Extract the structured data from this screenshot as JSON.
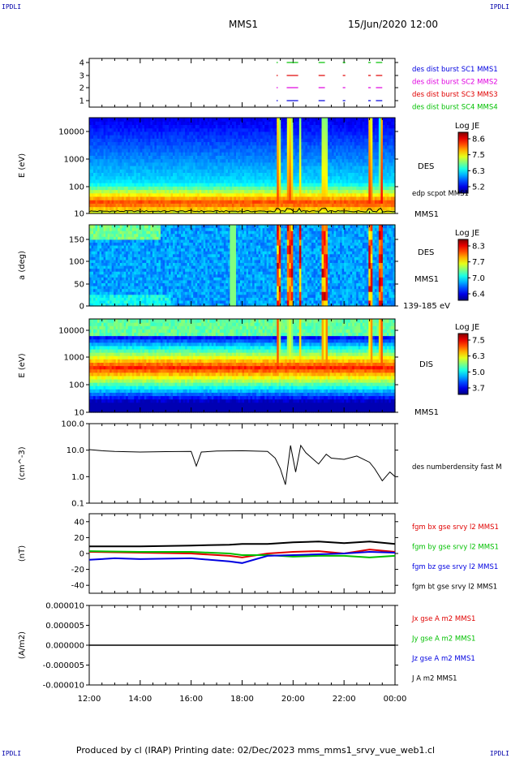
{
  "header": {
    "corner_label": "IPDLI",
    "mission": "MMS1",
    "datetime": "15/Jun/2020 12:00"
  },
  "footer": {
    "text": "Produced by cl (IRAP)   Printing date: 02/Dec/2023   mms_mms1_srvy_vue_web1.cl"
  },
  "colors": {
    "red": "#e00000",
    "green": "#00c000",
    "blue": "#0000e0",
    "magenta": "#e000e0",
    "black": "#000000"
  },
  "chart_data": {
    "type": "line",
    "x_axis": {
      "ticks": [
        "12:00",
        "14:00",
        "16:00",
        "18:00",
        "20:00",
        "22:00",
        "00:00"
      ],
      "range_hours": [
        0,
        12
      ]
    },
    "panels": [
      {
        "name": "burst-intervals",
        "type": "timeline",
        "yticks": [
          "1",
          "2",
          "3",
          "4"
        ],
        "legend": [
          {
            "label": "des dist burst SC1 MMS1",
            "color": "#0000e0"
          },
          {
            "label": "des dist burst SC2 MMS2",
            "color": "#e000e0"
          },
          {
            "label": "des dist burst SC3 MMS3",
            "color": "#e00000"
          },
          {
            "label": "des dist burst SC4 MMS4",
            "color": "#00c000"
          }
        ],
        "intervals_hours": [
          [
            7.35,
            7.4
          ],
          [
            7.75,
            8.2
          ],
          [
            9.0,
            9.25
          ],
          [
            9.95,
            10.05
          ],
          [
            10.95,
            11.05
          ],
          [
            11.25,
            11.5
          ]
        ]
      },
      {
        "name": "des-energy-spectrogram",
        "type": "heatmap",
        "ylabel": "E (eV)",
        "yticks": [
          "10",
          "100",
          "1000",
          "10000"
        ],
        "colorbar": {
          "title": "Log JE",
          "ticks": [
            "8.6",
            "7.5",
            "6.3",
            "5.2"
          ]
        },
        "labels": [
          "DES",
          "edp scpot MMS1",
          "MMS1"
        ]
      },
      {
        "name": "des-pitch-angle",
        "type": "heatmap",
        "ylabel": "a (deg)",
        "yticks": [
          "0",
          "50",
          "100",
          "150"
        ],
        "colorbar": {
          "title": "Log JE",
          "ticks": [
            "8.3",
            "7.7",
            "7.0",
            "6.4"
          ]
        },
        "labels": [
          "DES",
          "MMS1",
          "139-185 eV"
        ]
      },
      {
        "name": "dis-energy-spectrogram",
        "type": "heatmap",
        "ylabel": "E (eV)",
        "yticks": [
          "10",
          "100",
          "1000",
          "10000"
        ],
        "colorbar": {
          "title": "Log JE",
          "ticks": [
            "7.5",
            "6.3",
            "5.0",
            "3.7"
          ]
        },
        "labels": [
          "DIS",
          "MMS1"
        ]
      },
      {
        "name": "number-density",
        "type": "line",
        "ylabel": "(cm^-3)",
        "yticks": [
          "0.1",
          "1.0",
          "10.0",
          "100.0"
        ],
        "ylim": [
          0.1,
          100
        ],
        "legend": [
          {
            "label": "des numberdensity fast M",
            "color": "#000000"
          }
        ],
        "series": [
          {
            "x": [
              0,
              0.5,
              1,
              2,
              3,
              4,
              4.2,
              4.4,
              5,
              6,
              7,
              7.3,
              7.5,
              7.7,
              7.9,
              8.1,
              8.3,
              8.5,
              9,
              9.3,
              9.5,
              10,
              10.5,
              11,
              11.2,
              11.5,
              11.8,
              12
            ],
            "y": [
              10.5,
              9.5,
              9.0,
              8.5,
              8.8,
              9.0,
              2.5,
              8.5,
              9.2,
              9.5,
              9.0,
              5.0,
              2.0,
              0.5,
              15.0,
              1.5,
              15.0,
              8.0,
              3.0,
              7.0,
              5.0,
              4.5,
              6.0,
              3.5,
              2.0,
              0.7,
              1.5,
              1.0
            ]
          }
        ]
      },
      {
        "name": "magnetic-field",
        "type": "line",
        "ylabel": "(nT)",
        "yticks": [
          "-40",
          "-20",
          "0",
          "20",
          "40"
        ],
        "ylim": [
          -50,
          50
        ],
        "legend": [
          {
            "label": "fgm bx gse srvy l2 MMS1",
            "color": "#e00000"
          },
          {
            "label": "fgm by gse srvy l2 MMS1",
            "color": "#00c000"
          },
          {
            "label": "fgm bz gse srvy l2 MMS1",
            "color": "#0000e0"
          },
          {
            "label": "fgm bt gse srvy l2 MMS1",
            "color": "#000000"
          }
        ],
        "series": [
          {
            "x": [
              0,
              2,
              4,
              5.5,
              6,
              7,
              8,
              9,
              10,
              11,
              12
            ],
            "y": [
              2,
              1,
              0,
              -3,
              -5,
              0,
              2,
              3,
              0,
              5,
              2
            ]
          },
          {
            "x": [
              0,
              2,
              4,
              5.5,
              6,
              7,
              8,
              9,
              10,
              11,
              12
            ],
            "y": [
              3,
              2,
              2,
              0,
              -2,
              -2,
              -4,
              -3,
              -3,
              -5,
              -3
            ]
          },
          {
            "x": [
              0,
              1,
              2,
              4,
              5.5,
              6,
              7,
              8,
              9,
              10,
              11,
              12
            ],
            "y": [
              -8,
              -6,
              -7,
              -6,
              -10,
              -12,
              -3,
              -2,
              -1,
              0,
              2,
              1
            ]
          },
          {
            "x": [
              0,
              2,
              4,
              5.5,
              6,
              7,
              8,
              9,
              10,
              11,
              12
            ],
            "y": [
              9,
              9,
              10,
              11,
              12,
              12,
              14,
              15,
              13,
              15,
              12
            ]
          }
        ]
      },
      {
        "name": "current-density",
        "type": "line",
        "ylabel": "(A/m2)",
        "yticks": [
          "-0.000010",
          "-0.000005",
          "0.000000",
          "0.000005",
          "0.000010"
        ],
        "ylim": [
          -1e-05,
          1e-05
        ],
        "legend": [
          {
            "label": "Jx gse A m2 MMS1",
            "color": "#e00000"
          },
          {
            "label": "Jy gse A m2 MMS1",
            "color": "#00c000"
          },
          {
            "label": "Jz gse A m2 MMS1",
            "color": "#0000e0"
          },
          {
            "label": "J A m2 MMS1",
            "color": "#000000"
          }
        ],
        "series": [
          {
            "x": [
              0,
              12
            ],
            "y": [
              0,
              0
            ]
          }
        ]
      }
    ]
  }
}
